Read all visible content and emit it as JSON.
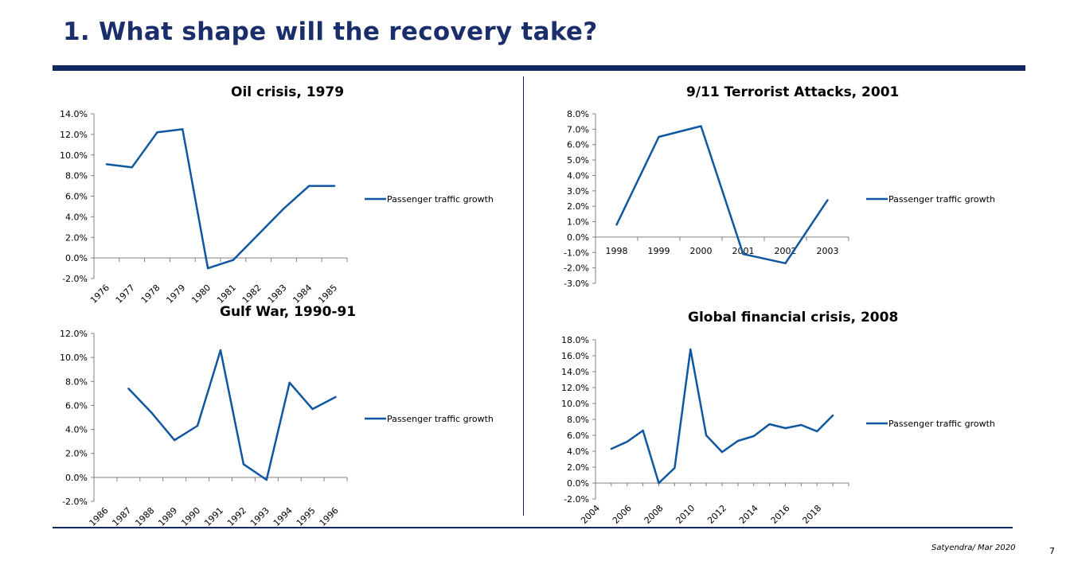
{
  "slide": {
    "title": "1. What shape will the recovery take?",
    "footer": "Satyendra/ Mar 2020",
    "page_number": "7"
  },
  "colors": {
    "line": "#0f57a0",
    "title": "#1a2e6b",
    "rule": "#13285f"
  },
  "chart_data": [
    {
      "type": "line",
      "title": "Oil crisis, 1979",
      "categories": [
        "1976",
        "1977",
        "1978",
        "1979",
        "1980",
        "1981",
        "1982",
        "1983",
        "1984",
        "1985"
      ],
      "series": [
        {
          "name": "Passenger traffic growth",
          "values": [
            9.1,
            8.8,
            12.2,
            12.5,
            -1.0,
            -0.2,
            2.3,
            4.8,
            7.0,
            7.0
          ]
        }
      ],
      "y_ticks": [
        "14.0%",
        "12.0%",
        "10.0%",
        "8.0%",
        "6.0%",
        "4.0%",
        "2.0%",
        "0.0%",
        "-2.0%"
      ],
      "ylim": [
        -2,
        14
      ],
      "x_label_rotated": true,
      "legend": "right"
    },
    {
      "type": "line",
      "title": "9/11 Terrorist Attacks, 2001",
      "categories": [
        "1998",
        "1999",
        "2000",
        "2001",
        "2002",
        "2003"
      ],
      "series": [
        {
          "name": "Passenger traffic growth",
          "values": [
            0.8,
            6.5,
            7.2,
            -1.1,
            -1.7,
            2.4
          ]
        }
      ],
      "y_ticks": [
        "8.0%",
        "7.0%",
        "6.0%",
        "5.0%",
        "4.0%",
        "3.0%",
        "2.0%",
        "1.0%",
        "0.0%",
        "-1.0%",
        "-2.0%",
        "-3.0%"
      ],
      "ylim": [
        -3,
        8
      ],
      "x_label_rotated": false,
      "legend": "right"
    },
    {
      "type": "line",
      "title": "Gulf War, 1990-91",
      "categories": [
        "1986",
        "1987",
        "1988",
        "1989",
        "1990",
        "1991",
        "1992",
        "1993",
        "1994",
        "1995",
        "1996"
      ],
      "series": [
        {
          "name": "Passenger traffic growth",
          "values": [
            null,
            7.4,
            5.4,
            3.1,
            4.3,
            10.6,
            1.1,
            -0.2,
            7.9,
            5.7,
            6.7
          ]
        }
      ],
      "y_ticks": [
        "12.0%",
        "10.0%",
        "8.0%",
        "6.0%",
        "4.0%",
        "2.0%",
        "0.0%",
        "-2.0%"
      ],
      "ylim": [
        -2,
        12
      ],
      "x_label_rotated": true,
      "legend": "right"
    },
    {
      "type": "line",
      "title": "Global financial crisis, 2008",
      "categories": [
        "2004",
        "2006",
        "2008",
        "2010",
        "2012",
        "2014",
        "2016",
        "2018"
      ],
      "x": [
        2005,
        2006,
        2007,
        2008,
        2009,
        2010,
        2011,
        2012,
        2013,
        2014,
        2015,
        2016,
        2017,
        2018,
        2019
      ],
      "x_range": [
        2004,
        2020
      ],
      "series": [
        {
          "name": "Passenger traffic growth",
          "values": [
            4.3,
            5.2,
            6.6,
            0.0,
            1.9,
            16.8,
            6.0,
            3.9,
            5.3,
            5.9,
            7.4,
            6.9,
            7.3,
            6.5,
            8.5
          ]
        }
      ],
      "y_ticks": [
        "18.0%",
        "16.0%",
        "14.0%",
        "12.0%",
        "10.0%",
        "8.0%",
        "6.0%",
        "4.0%",
        "2.0%",
        "0.0%",
        "-2.0%"
      ],
      "ylim": [
        -2,
        18
      ],
      "x_label_rotated": true,
      "legend": "right"
    }
  ]
}
